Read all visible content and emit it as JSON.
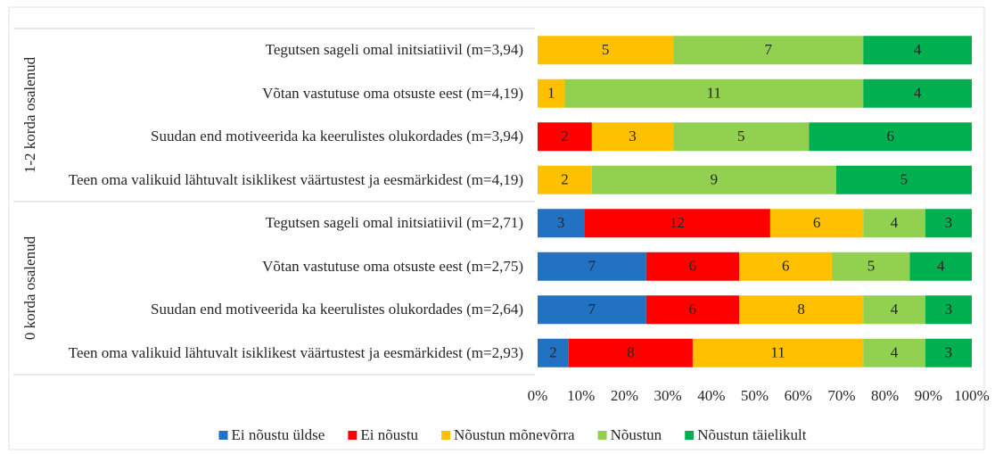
{
  "chart_data": {
    "type": "bar",
    "orientation": "horizontal",
    "stack": "percent",
    "groups": [
      "1-2 korda osalenud",
      "0 korda osalenud"
    ],
    "categories": [
      "Tegutsen sageli omal initsiatiivil (m=3,94)",
      "Võtan vastutuse oma otsuste eest (m=4,19)",
      "Suudan end motiveerida ka keerulistes olukordades (m=3,94)",
      "Teen oma valikuid lähtuvalt isiklikest väärtustest ja eesmärkidest (m=4,19)",
      "Tegutsen sageli omal initsiatiivil (m=2,71)",
      "Võtan vastutuse oma otsuste eest (m=2,75)",
      "Suudan end motiveerida ka keerulistes olukordades (m=2,64)",
      "Teen oma valikuid lähtuvalt isiklikest väärtustest ja eesmärkidest (m=2,93)"
    ],
    "series": [
      {
        "name": "Ei nõustu üldse",
        "color": "#2272c3",
        "values": [
          null,
          null,
          null,
          null,
          3,
          7,
          7,
          2
        ]
      },
      {
        "name": "Ei nõustu",
        "color": "#ff0000",
        "values": [
          null,
          null,
          2,
          null,
          12,
          6,
          6,
          8
        ]
      },
      {
        "name": "Nõustun mõnevõrra",
        "color": "#ffc000",
        "values": [
          5,
          1,
          3,
          2,
          6,
          6,
          8,
          11
        ]
      },
      {
        "name": "Nõustun",
        "color": "#92d050",
        "values": [
          7,
          11,
          5,
          9,
          4,
          5,
          4,
          4
        ]
      },
      {
        "name": "Nõustun täielikult",
        "color": "#00b050",
        "values": [
          4,
          4,
          6,
          5,
          3,
          4,
          3,
          3
        ]
      }
    ],
    "xlim": [
      0,
      100
    ],
    "xticks": [
      {
        "value": 0,
        "label": "0%"
      },
      {
        "value": 10,
        "label": "10%"
      },
      {
        "value": 20,
        "label": "20%"
      },
      {
        "value": 30,
        "label": "30%"
      },
      {
        "value": 40,
        "label": "40%"
      },
      {
        "value": 50,
        "label": "50%"
      },
      {
        "value": 60,
        "label": "60%"
      },
      {
        "value": 70,
        "label": "70%"
      },
      {
        "value": 80,
        "label": "80%"
      },
      {
        "value": 90,
        "label": "90%"
      },
      {
        "value": 100,
        "label": "100%"
      }
    ],
    "legend": "bottom"
  }
}
